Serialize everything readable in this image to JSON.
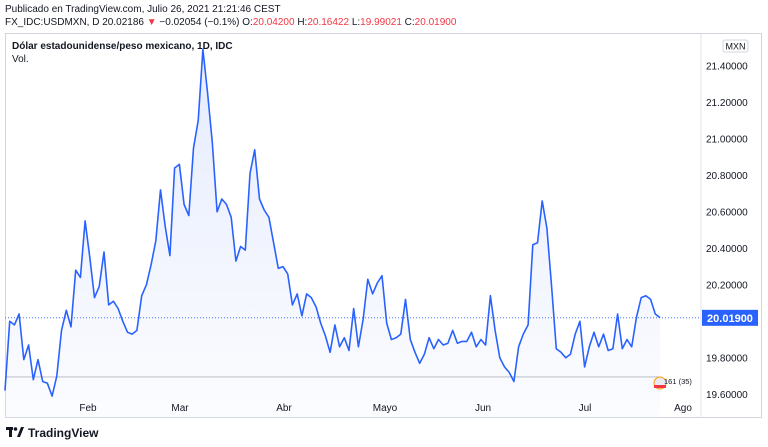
{
  "header": {
    "published": "Publicado en TradingView.com, Julio 26, 2021 21:21:46 CEST",
    "symbol": "FX_IDC:USDMXN, D",
    "last": "20.02186",
    "change_arrow": "▼",
    "change": "−0.02054 (−0.1%)",
    "o_label": "O:",
    "o_value": "20.04200",
    "h_label": "H:",
    "h_value": "20.16422",
    "l_label": "L:",
    "l_value": "19.99021",
    "c_label": "C:",
    "c_value": "20.01900"
  },
  "chart_title": "Dólar estadounidense/peso mexicano, 1D, IDC",
  "volume_label": "Vol.",
  "currency_badge": "MXN",
  "price_tag": "20.01900",
  "events_badge": "161 (35)",
  "footer_brand": "TradingView",
  "colors": {
    "line": "#2962ff",
    "fill": "#e6ecfd",
    "price_tag": "#2962ff",
    "down": "#f23645",
    "axis_text": "#131722"
  },
  "chart_data": {
    "type": "area",
    "ylim": [
      19.47,
      21.58
    ],
    "yticks": [
      "21.40000",
      "21.20000",
      "21.00000",
      "20.80000",
      "20.60000",
      "20.40000",
      "20.20000",
      "19.80000",
      "19.60000"
    ],
    "ytick_values": [
      21.4,
      21.2,
      21.0,
      20.8,
      20.6,
      20.4,
      20.2,
      19.8,
      19.6
    ],
    "xticks": [
      "Feb",
      "Mar",
      "Abr",
      "Mayo",
      "Jun",
      "Jul",
      "Ago"
    ],
    "reference_lines": [
      20.019,
      19.695
    ],
    "values": [
      19.62,
      20.0,
      19.98,
      20.04,
      19.79,
      19.87,
      19.68,
      19.79,
      19.67,
      19.66,
      19.59,
      19.7,
      19.95,
      20.06,
      19.97,
      20.28,
      20.24,
      20.55,
      20.35,
      20.13,
      20.19,
      20.38,
      20.09,
      20.11,
      20.07,
      20.0,
      19.94,
      19.93,
      19.95,
      20.14,
      20.2,
      20.31,
      20.44,
      20.72,
      20.52,
      20.36,
      20.84,
      20.86,
      20.64,
      20.58,
      20.95,
      21.1,
      21.49,
      21.25,
      20.98,
      20.6,
      20.67,
      20.64,
      20.57,
      20.33,
      20.41,
      20.39,
      20.81,
      20.94,
      20.67,
      20.61,
      20.57,
      20.43,
      20.29,
      20.3,
      20.26,
      20.09,
      20.15,
      20.03,
      20.15,
      20.13,
      20.08,
      19.99,
      19.92,
      19.83,
      19.98,
      19.86,
      19.91,
      19.84,
      20.07,
      19.86,
      20.01,
      20.23,
      20.15,
      20.21,
      20.25,
      19.99,
      19.9,
      19.91,
      19.93,
      20.12,
      19.9,
      19.83,
      19.77,
      19.82,
      19.91,
      19.85,
      19.9,
      19.87,
      19.88,
      19.95,
      19.88,
      19.89,
      19.89,
      19.94,
      19.86,
      19.9,
      19.87,
      20.14,
      19.95,
      19.8,
      19.75,
      19.72,
      19.67,
      19.86,
      19.93,
      19.98,
      20.42,
      20.43,
      20.66,
      20.51,
      20.19,
      19.85,
      19.83,
      19.8,
      19.82,
      19.93,
      20.0,
      19.75,
      19.86,
      19.94,
      19.86,
      19.93,
      19.84,
      19.85,
      20.04,
      19.85,
      19.9,
      19.86,
      20.02,
      20.13,
      20.14,
      20.12,
      20.04,
      20.02
    ]
  }
}
